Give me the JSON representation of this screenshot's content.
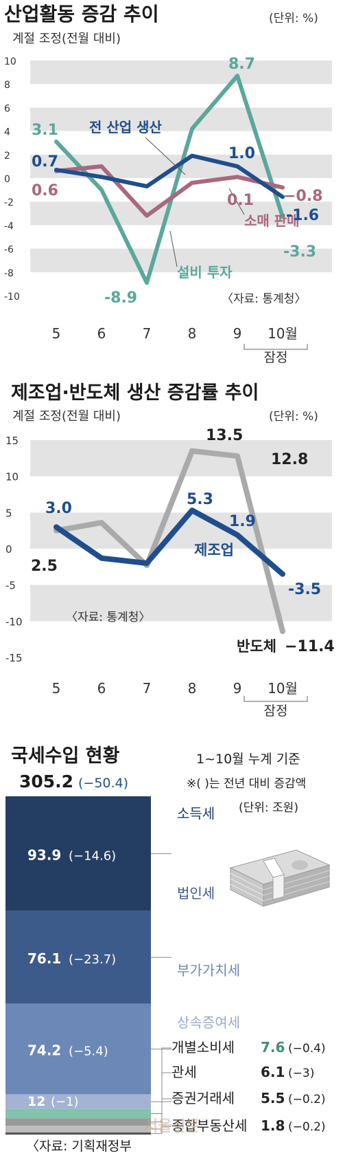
{
  "chart_data": [
    {
      "type": "line",
      "title": "산업활동 증감 추이",
      "subtitle": "계절 조정(전월 대비)",
      "unit": "(단위: %)",
      "source": "〈자료: 통계청〉",
      "categories": [
        "5",
        "6",
        "7",
        "8",
        "9",
        "10월"
      ],
      "x_note": "잠정",
      "ylim": [
        -10,
        10
      ],
      "yticks": [
        10,
        8,
        6,
        4,
        2,
        0,
        -2,
        -4,
        -6,
        -8,
        -10
      ],
      "series": [
        {
          "name": "설비 투자",
          "color": "#5aa89a",
          "values": [
            3.1,
            -1.0,
            -8.9,
            4.2,
            8.7,
            -3.3
          ],
          "start_label": "3.1",
          "low_label": "-8.9",
          "high_label": "8.7",
          "end_label": "-3.3"
        },
        {
          "name": "소매 판매",
          "color": "#a8687e",
          "values": [
            0.6,
            1.0,
            -3.2,
            -0.4,
            0.1,
            -0.8
          ],
          "start_label": "0.6",
          "mid_label": "0.1",
          "end_label": "−0.8"
        },
        {
          "name": "전 산업 생산",
          "color": "#1f4e8c",
          "values": [
            0.7,
            0.1,
            -0.7,
            1.9,
            1.0,
            -1.6
          ],
          "start_label": "0.7",
          "mid_label": "1.0",
          "end_label": "-1.6"
        }
      ]
    },
    {
      "type": "line",
      "title": "제조업·반도체 생산 증감률 추이",
      "subtitle": "계절 조정(전월 대비)",
      "unit": "(단위: %)",
      "source": "〈자료: 통계청〉",
      "categories": [
        "5",
        "6",
        "7",
        "8",
        "9",
        "10월"
      ],
      "x_note": "잠정",
      "ylim": [
        -15,
        15
      ],
      "yticks": [
        15,
        10,
        5,
        0,
        -5,
        -10,
        -15
      ],
      "series": [
        {
          "name": "반도체",
          "color": "#aaaaaa",
          "values": [
            2.5,
            3.6,
            -2.3,
            13.5,
            12.8,
            -11.4
          ],
          "start_label": "2.5",
          "high_label": "13.5",
          "mid_label": "12.8",
          "end_label": "−11.4"
        },
        {
          "name": "제조업",
          "color": "#1f4e8c",
          "values": [
            3.0,
            -1.3,
            -2.0,
            5.3,
            1.9,
            -3.5
          ],
          "start_label": "3.0",
          "high_label": "5.3",
          "mid_label": "1.9",
          "end_label": "-3.5"
        }
      ]
    },
    {
      "type": "bar",
      "stacked": true,
      "title": "국세수입 현황",
      "note1": "1~10월 누계 기준",
      "note2": "※( )는 전년 대비 증감액",
      "unit": "(단위: 조원)",
      "source": "〈자료: 기획재정부",
      "watermark": "서울신문",
      "total_value": "305.2",
      "total_change": "(−50.4)",
      "segments": [
        {
          "name": "소득세",
          "value": 93.9,
          "value_label": "93.9",
          "change": "(−14.6)",
          "color": "#243e63",
          "label_color": "#243e63"
        },
        {
          "name": "법인세",
          "value": 76.1,
          "value_label": "76.1",
          "change": "(−23.7)",
          "color": "#3d5b8a",
          "label_color": "#3d5b8a"
        },
        {
          "name": "부가가치세",
          "value": 74.2,
          "value_label": "74.2",
          "change": "(−5.4)",
          "color": "#6b88b6",
          "label_color": "#6b88b6"
        },
        {
          "name": "상속증여세",
          "value": 12,
          "value_label": "12",
          "change": "(−1)",
          "color": "#a3b3d3",
          "label_color": "#9aa9c6"
        },
        {
          "name": "개별소비세",
          "value": 7.6,
          "value_label": "7.6",
          "change": "(−0.4)",
          "color": "#82c3ab",
          "label_color": "#3f8f74"
        },
        {
          "name": "관세",
          "value": 6.1,
          "value_label": "6.1",
          "change": "(−3)",
          "color": "#9a9a9a",
          "label_color": "#222222"
        },
        {
          "name": "증권거래세",
          "value": 5.5,
          "value_label": "5.5",
          "change": "(−0.2)",
          "color": "#bdbdbd",
          "label_color": "#222222"
        },
        {
          "name": "종합부동산세",
          "value": 1.8,
          "value_label": "1.8",
          "change": "(−0.2)",
          "color": "#555555",
          "label_color": "#222222"
        }
      ]
    }
  ]
}
